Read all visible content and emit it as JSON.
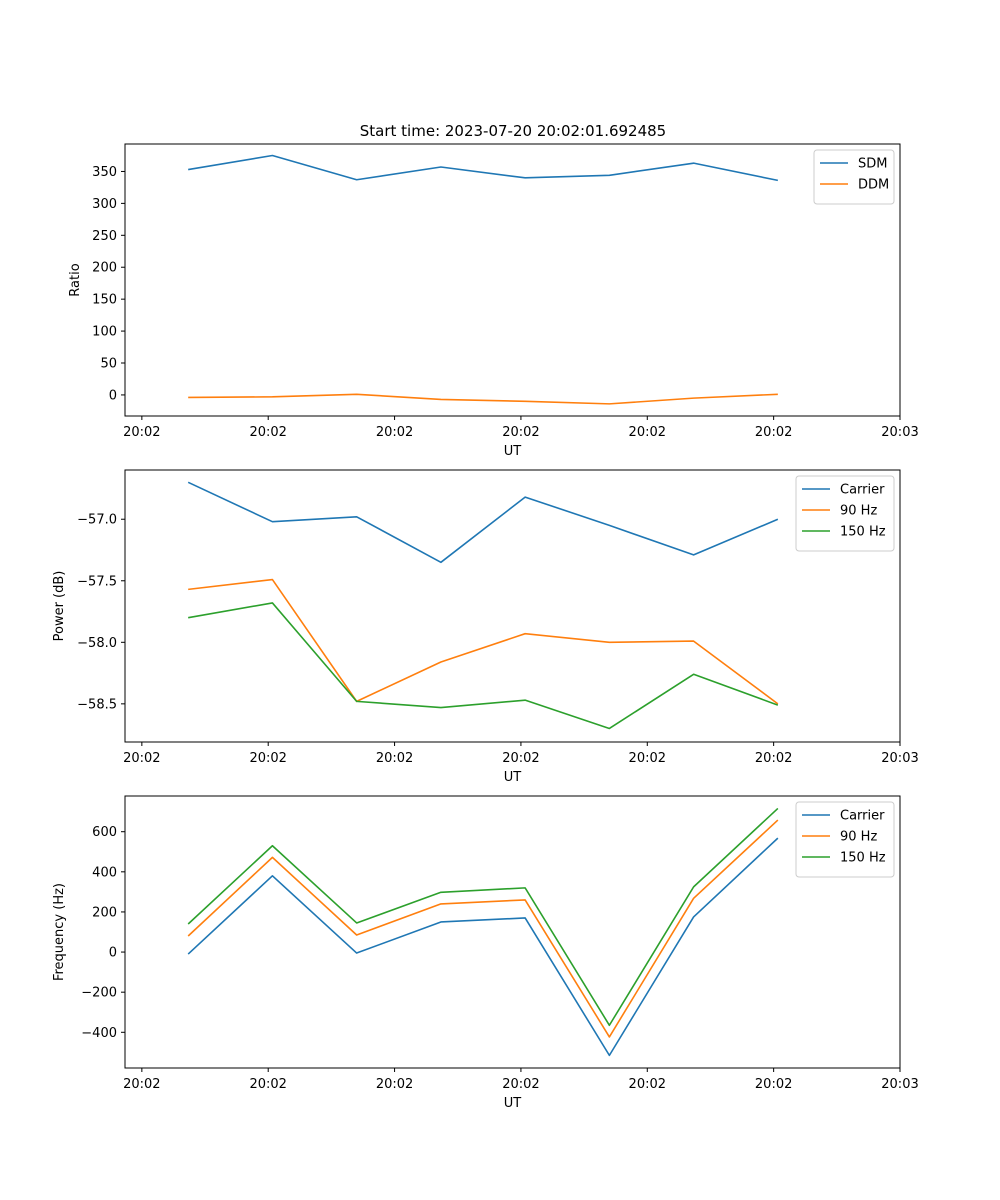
{
  "figure_title": "Start time: 2023-07-20 20:02:01.692485",
  "colors": {
    "c0": "#1f77b4",
    "c1": "#ff7f0e",
    "c2": "#2ca02c"
  },
  "chart_data": [
    {
      "type": "line",
      "title": "Start time: 2023-07-20 20:02:01.692485",
      "xlabel": "UT",
      "ylabel": "Ratio",
      "x": [
        0,
        1,
        2,
        3,
        4,
        5,
        6,
        7
      ],
      "xlim": [
        -0.75,
        8.45
      ],
      "xticks": [
        {
          "v": -0.55,
          "label": "20:02"
        },
        {
          "v": 0.95,
          "label": "20:02"
        },
        {
          "v": 2.45,
          "label": "20:02"
        },
        {
          "v": 3.95,
          "label": "20:02"
        },
        {
          "v": 5.45,
          "label": "20:02"
        },
        {
          "v": 6.95,
          "label": "20:02"
        },
        {
          "v": 8.45,
          "label": "20:03"
        }
      ],
      "ylim": [
        -33,
        393
      ],
      "yticks": [
        0,
        50,
        100,
        150,
        200,
        250,
        300,
        350
      ],
      "ytick_labels": [
        "0",
        "50",
        "100",
        "150",
        "200",
        "250",
        "300",
        "350"
      ],
      "legend": "top-right",
      "series": [
        {
          "name": "SDM",
          "color": "#1f77b4",
          "values": [
            353,
            375,
            337,
            357,
            340,
            344,
            363,
            336
          ]
        },
        {
          "name": "DDM",
          "color": "#ff7f0e",
          "values": [
            -4,
            -3,
            1,
            -7,
            -10,
            -14,
            -5,
            1
          ]
        }
      ]
    },
    {
      "type": "line",
      "title": "",
      "xlabel": "UT",
      "ylabel": "Power (dB)",
      "x": [
        0,
        1,
        2,
        3,
        4,
        5,
        6,
        7
      ],
      "xlim": [
        -0.75,
        8.45
      ],
      "xticks": [
        {
          "v": -0.55,
          "label": "20:02"
        },
        {
          "v": 0.95,
          "label": "20:02"
        },
        {
          "v": 2.45,
          "label": "20:02"
        },
        {
          "v": 3.95,
          "label": "20:02"
        },
        {
          "v": 5.45,
          "label": "20:02"
        },
        {
          "v": 6.95,
          "label": "20:02"
        },
        {
          "v": 8.45,
          "label": "20:03"
        }
      ],
      "ylim": [
        -58.81,
        -56.6
      ],
      "yticks": [
        -58.5,
        -58.0,
        -57.5,
        -57.0
      ],
      "ytick_labels": [
        "−58.5",
        "−58.0",
        "−57.5",
        "−57.0"
      ],
      "legend": "top-right",
      "series": [
        {
          "name": "Carrier",
          "color": "#1f77b4",
          "values": [
            -56.7,
            -57.02,
            -56.98,
            -57.35,
            -56.82,
            -57.05,
            -57.29,
            -57.0
          ]
        },
        {
          "name": "90 Hz",
          "color": "#ff7f0e",
          "values": [
            -57.57,
            -57.49,
            -58.48,
            -58.16,
            -57.93,
            -58.0,
            -57.99,
            -58.5
          ]
        },
        {
          "name": "150 Hz",
          "color": "#2ca02c",
          "values": [
            -57.8,
            -57.68,
            -58.48,
            -58.53,
            -58.47,
            -58.7,
            -58.26,
            -58.51
          ]
        }
      ]
    },
    {
      "type": "line",
      "title": "",
      "xlabel": "UT",
      "ylabel": "Frequency (Hz)",
      "x": [
        0,
        1,
        2,
        3,
        4,
        5,
        6,
        7
      ],
      "xlim": [
        -0.75,
        8.45
      ],
      "xticks": [
        {
          "v": -0.55,
          "label": "20:02"
        },
        {
          "v": 0.95,
          "label": "20:02"
        },
        {
          "v": 2.45,
          "label": "20:02"
        },
        {
          "v": 3.95,
          "label": "20:02"
        },
        {
          "v": 5.45,
          "label": "20:02"
        },
        {
          "v": 6.95,
          "label": "20:02"
        },
        {
          "v": 8.45,
          "label": "20:03"
        }
      ],
      "ylim": [
        -578,
        778
      ],
      "yticks": [
        -400,
        -200,
        0,
        200,
        400,
        600
      ],
      "ytick_labels": [
        "−400",
        "−200",
        "0",
        "200",
        "400",
        "600"
      ],
      "legend": "top-right",
      "series": [
        {
          "name": "Carrier",
          "color": "#1f77b4",
          "values": [
            -10,
            380,
            -5,
            150,
            170,
            -515,
            175,
            568
          ]
        },
        {
          "name": "90 Hz",
          "color": "#ff7f0e",
          "values": [
            80,
            472,
            85,
            240,
            260,
            -423,
            268,
            658
          ]
        },
        {
          "name": "150 Hz",
          "color": "#2ca02c",
          "values": [
            140,
            530,
            145,
            298,
            320,
            -365,
            325,
            716
          ]
        }
      ]
    }
  ]
}
